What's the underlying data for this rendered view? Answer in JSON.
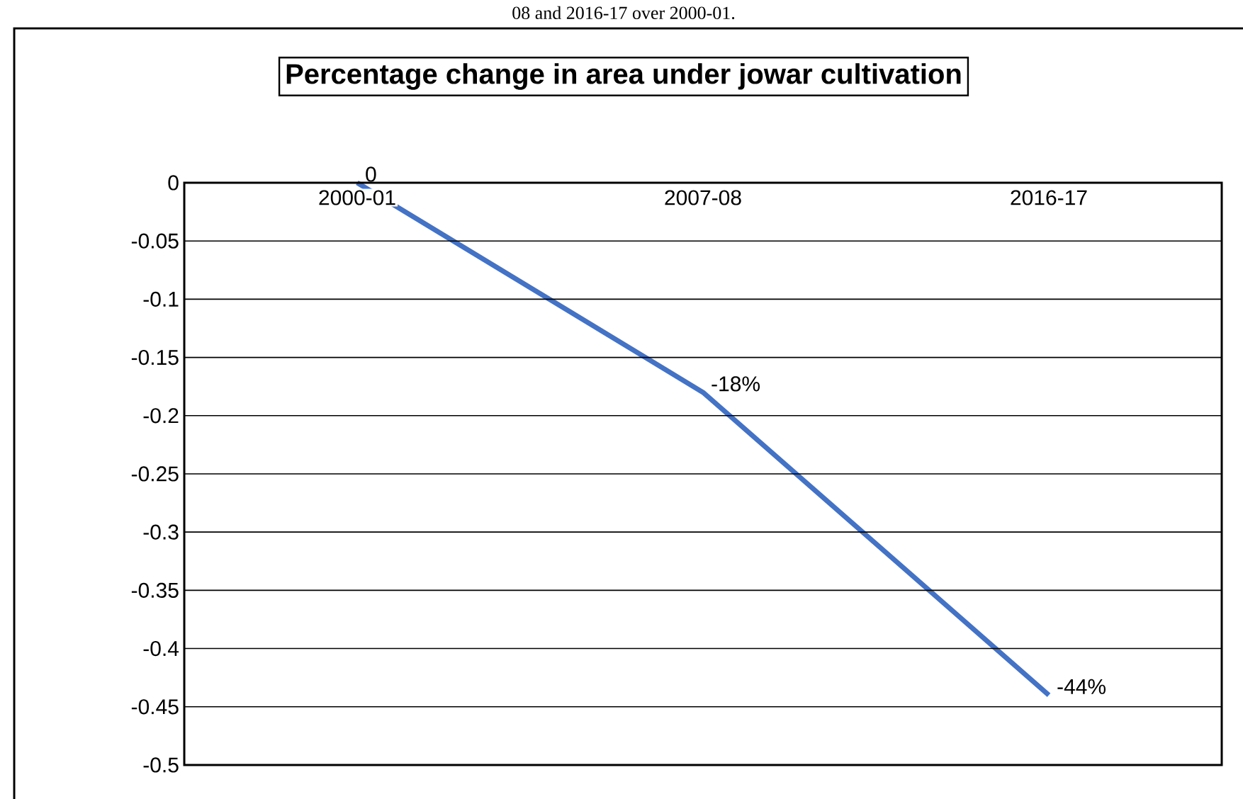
{
  "chart_data": {
    "type": "line",
    "title": "Percentage change in area under jowar cultivation",
    "annotations": [
      "08 and 2016-17 over 2000-01."
    ],
    "categories": [
      "2000-01",
      "2007-08",
      "2016-17"
    ],
    "values": [
      0,
      -0.18,
      -0.44
    ],
    "value_labels": [
      "0",
      "-18%",
      "-44%"
    ],
    "color": "#4472c4",
    "ylim": [
      -0.5,
      0
    ],
    "yticks": [
      -0.5,
      -0.45,
      -0.4,
      -0.35,
      -0.3,
      -0.25,
      -0.2,
      -0.15,
      -0.1,
      -0.05,
      0
    ],
    "grid": "y",
    "marker": "none",
    "line_style": "solid"
  }
}
